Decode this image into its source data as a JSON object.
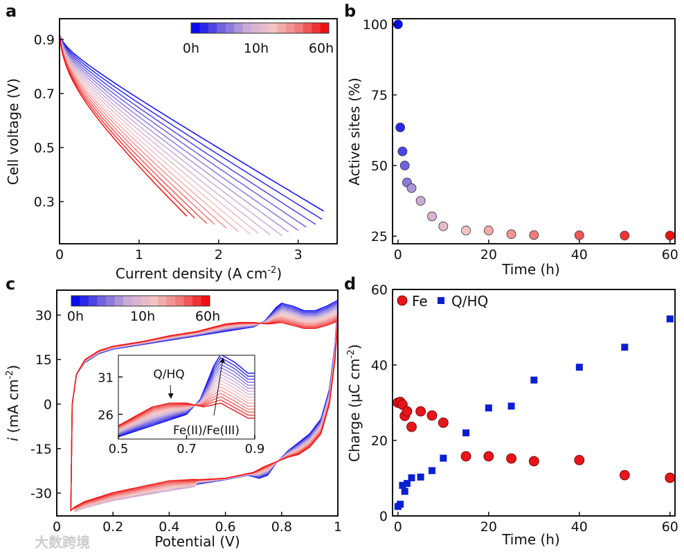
{
  "colormap": {
    "stops": [
      "#0a0af0",
      "#6f63de",
      "#c9acd6",
      "#f3c3c3",
      "#f27b7b",
      "#ee1010"
    ]
  },
  "hours": [
    0,
    0.5,
    1,
    1.5,
    2,
    3,
    5,
    7.5,
    10,
    15,
    20,
    25,
    30,
    40,
    50,
    60
  ],
  "watermark": "大数跨境",
  "chart_data": [
    {
      "panel": "a",
      "type": "line",
      "xlabel": "Current density (A cm",
      "xlabel_sup": "-2",
      "xlabel_end": ")",
      "ylabel": "Cell voltage (V)",
      "xlim": [
        0,
        3.49
      ],
      "ylim": [
        0.144,
        0.977
      ],
      "xticks": [
        0,
        1,
        2,
        3
      ],
      "xtick_labels": [
        "0",
        "1",
        "2",
        "3"
      ],
      "yticks": [
        0.3,
        0.5,
        0.7,
        0.9
      ],
      "ytick_labels": [
        "0.3",
        "0.5",
        "0.7",
        "0.9"
      ],
      "colorbar": {
        "labels": [
          "0h",
          "10h",
          "60h"
        ]
      },
      "model": "V = V0 - a*ln(1 + j/j0) - R*j",
      "V0": 0.92,
      "j0": 0.02,
      "a_range": [
        0.0177,
        0.058
      ],
      "R_range": [
        0.17,
        0.262
      ],
      "j_max": [
        3.32,
        3.3,
        3.22,
        3.1,
        3.0,
        2.88,
        2.8,
        2.65,
        2.5,
        2.4,
        2.25,
        2.1,
        1.95,
        1.85,
        1.7,
        1.6
      ]
    },
    {
      "panel": "b",
      "type": "scatter",
      "xlabel": "Time (h)",
      "ylabel": "Active sites (%)",
      "xlim": [
        -1.2,
        61.1
      ],
      "ylim": [
        22.3,
        102
      ],
      "xticks": [
        0,
        20,
        40,
        60
      ],
      "xtick_labels": [
        "0",
        "20",
        "40",
        "60"
      ],
      "yticks": [
        25,
        50,
        75,
        100
      ],
      "ytick_labels": [
        "25",
        "50",
        "75",
        "100"
      ],
      "x": [
        0,
        0.5,
        1,
        1.5,
        2,
        3,
        5,
        7.5,
        10,
        15,
        20,
        25,
        30,
        40,
        50,
        60
      ],
      "y": [
        100,
        63.5,
        55,
        50,
        44,
        42,
        37.5,
        32,
        28.5,
        27,
        27,
        25.7,
        25.4,
        25.3,
        25.2,
        25.2
      ]
    },
    {
      "panel": "c",
      "type": "line",
      "xlabel": "Potential (V)",
      "ylabel_i": "i",
      "ylabel": " (mA cm",
      "ylabel_sup": "-2",
      "ylabel_end": ")",
      "xlim": [
        0,
        1
      ],
      "ylim": [
        -37.7,
        38.4
      ],
      "xticks": [
        0,
        0.2,
        0.4,
        0.6,
        0.8,
        1
      ],
      "xtick_labels": [
        "0",
        "0.2",
        "0.4",
        "0.6",
        "0.8",
        "1"
      ],
      "yticks": [
        -30,
        -15,
        0,
        15,
        30
      ],
      "ytick_labels": [
        "-30",
        "-15",
        "0",
        "15",
        "30"
      ],
      "colorbar": {
        "labels": [
          "0h",
          "10h",
          "60h"
        ]
      },
      "series_0h": {
        "anodic": [
          [
            0.05,
            -36
          ],
          [
            0.055,
            0
          ],
          [
            0.07,
            10
          ],
          [
            0.1,
            14
          ],
          [
            0.15,
            17
          ],
          [
            0.2,
            18.5
          ],
          [
            0.3,
            20
          ],
          [
            0.4,
            21.5
          ],
          [
            0.5,
            23
          ],
          [
            0.6,
            24.5
          ],
          [
            0.7,
            26
          ],
          [
            0.74,
            28
          ],
          [
            0.78,
            32.5
          ],
          [
            0.8,
            34
          ],
          [
            0.84,
            33
          ],
          [
            0.88,
            31.5
          ],
          [
            0.92,
            31.5
          ],
          [
            0.96,
            33
          ],
          [
            1.0,
            35
          ]
        ],
        "cathodic": [
          [
            1.0,
            35
          ],
          [
            0.99,
            20
          ],
          [
            0.97,
            5
          ],
          [
            0.94,
            -5
          ],
          [
            0.9,
            -10
          ],
          [
            0.86,
            -13
          ],
          [
            0.82,
            -16
          ],
          [
            0.78,
            -20
          ],
          [
            0.75,
            -24
          ],
          [
            0.72,
            -25
          ],
          [
            0.68,
            -24
          ],
          [
            0.6,
            -25.5
          ],
          [
            0.5,
            -27
          ],
          [
            0.4,
            -29
          ],
          [
            0.3,
            -30.5
          ],
          [
            0.2,
            -32
          ],
          [
            0.1,
            -34
          ],
          [
            0.06,
            -35
          ],
          [
            0.05,
            -36
          ]
        ]
      },
      "series_60h": {
        "anodic": [
          [
            0.05,
            -36
          ],
          [
            0.055,
            0
          ],
          [
            0.07,
            10
          ],
          [
            0.1,
            15
          ],
          [
            0.15,
            18
          ],
          [
            0.2,
            19.5
          ],
          [
            0.3,
            21
          ],
          [
            0.4,
            23
          ],
          [
            0.5,
            24.5
          ],
          [
            0.6,
            27
          ],
          [
            0.65,
            27.5
          ],
          [
            0.7,
            27.5
          ],
          [
            0.75,
            27
          ],
          [
            0.8,
            27.5
          ],
          [
            0.84,
            26.5
          ],
          [
            0.88,
            25.5
          ],
          [
            0.92,
            25.5
          ],
          [
            0.96,
            26.5
          ],
          [
            1.0,
            28
          ]
        ],
        "cathodic": [
          [
            1.0,
            28
          ],
          [
            0.99,
            15
          ],
          [
            0.97,
            0
          ],
          [
            0.94,
            -10
          ],
          [
            0.9,
            -14.5
          ],
          [
            0.86,
            -17
          ],
          [
            0.82,
            -18
          ],
          [
            0.78,
            -19.5
          ],
          [
            0.74,
            -21
          ],
          [
            0.7,
            -23
          ],
          [
            0.6,
            -25
          ],
          [
            0.5,
            -25.5
          ],
          [
            0.4,
            -26
          ],
          [
            0.3,
            -28
          ],
          [
            0.2,
            -30
          ],
          [
            0.1,
            -33
          ],
          [
            0.06,
            -35
          ],
          [
            0.05,
            -36
          ]
        ]
      },
      "inset": {
        "xlim": [
          0.5,
          0.9
        ],
        "ylim": [
          22.7,
          33.9
        ],
        "xticks": [
          0.5,
          0.7,
          0.9
        ],
        "xtick_labels": [
          "0.5",
          "0.7",
          "0.9"
        ],
        "yticks": [
          26,
          31
        ],
        "ytick_labels": [
          "26",
          "31"
        ],
        "annotations": [
          "Q/HQ",
          "Fe(II)/Fe(III)"
        ]
      }
    },
    {
      "panel": "d",
      "type": "scatter",
      "xlabel": "Time (h)",
      "ylabel": "Charge (μC cm",
      "ylabel_sup": "-2",
      "ylabel_end": ")",
      "xlim": [
        -1.2,
        61.1
      ],
      "ylim": [
        0,
        60
      ],
      "xticks": [
        0,
        20,
        40,
        60
      ],
      "xtick_labels": [
        "0",
        "20",
        "40",
        "60"
      ],
      "yticks": [
        0,
        20,
        40,
        60
      ],
      "ytick_labels": [
        "0",
        "20",
        "40",
        "60"
      ],
      "legend": {
        "placement": "top-left"
      },
      "series": [
        {
          "name": "Fe",
          "marker": "circle",
          "color": "#e8141a",
          "x": [
            0,
            0.5,
            1,
            1.5,
            2,
            3,
            5,
            7.5,
            10,
            15,
            20,
            25,
            30,
            40,
            50,
            60
          ],
          "y": [
            30,
            30.2,
            29.5,
            26.5,
            27.7,
            23.6,
            27.7,
            26.6,
            24.7,
            15.8,
            15.8,
            15.2,
            14.5,
            14.8,
            10.8,
            10.1
          ]
        },
        {
          "name": "Q/HQ",
          "marker": "square",
          "color": "#0a1fcf",
          "x": [
            0,
            0.5,
            1,
            1.5,
            2,
            3,
            5,
            7.5,
            10,
            15,
            20,
            25,
            30,
            40,
            50,
            60
          ],
          "y": [
            2.5,
            3.1,
            8.1,
            6.5,
            8.6,
            10.1,
            10.3,
            12,
            15.3,
            22,
            28.6,
            29.1,
            36,
            39.4,
            44.7,
            52.2
          ]
        }
      ]
    }
  ],
  "panel_labels": [
    "a",
    "b",
    "c",
    "d"
  ]
}
